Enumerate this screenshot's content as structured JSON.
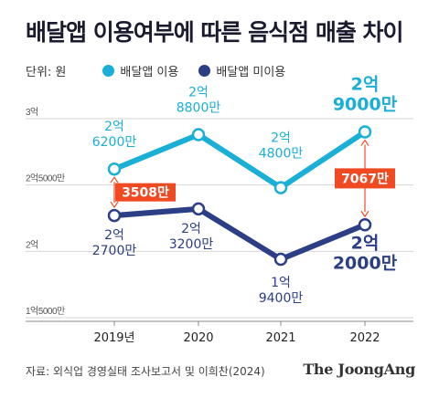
{
  "title": "배달앱 이용여부에 따른 음식점 매출 차이",
  "unit_label": "단위: 원",
  "source": "자료: 외식업 경영실태 조사보고서 및 이희찬(2024)",
  "brand": "The JoongAng",
  "colors": {
    "series_app": "#1aafd6",
    "series_noapp": "#2b3e86",
    "diff": "#f04a23",
    "text_dark": "#1b1b2f"
  },
  "chart_data": {
    "type": "line",
    "x": [
      "2019년",
      "2020",
      "2021",
      "2022"
    ],
    "ylim": [
      150000000,
      300000000
    ],
    "y_ticks": [
      {
        "value": 300000000,
        "label": "3억"
      },
      {
        "value": 250000000,
        "label": "2억5000만"
      },
      {
        "value": 200000000,
        "label": "2억"
      },
      {
        "value": 150000000,
        "label": "1억5000만"
      }
    ],
    "series": [
      {
        "name": "배달앱 이용",
        "values": [
          262000000,
          288000000,
          248000000,
          290000000
        ],
        "labels": [
          [
            "2억",
            "6200만"
          ],
          [
            "2억",
            "8800만"
          ],
          [
            "2억",
            "4800만"
          ],
          [
            "2억",
            "9000만"
          ]
        ]
      },
      {
        "name": "배달앱 미이용",
        "values": [
          227000000,
          232000000,
          194000000,
          220000000
        ],
        "labels": [
          [
            "2억",
            "2700만"
          ],
          [
            "2억",
            "3200만"
          ],
          [
            "1억",
            "9400만"
          ],
          [
            "2억",
            "2000만"
          ]
        ]
      }
    ],
    "differences": [
      {
        "index": 0,
        "label": "3508만"
      },
      {
        "index": 3,
        "label": "7067만"
      }
    ],
    "grid": true,
    "legend_position": "top-left"
  }
}
